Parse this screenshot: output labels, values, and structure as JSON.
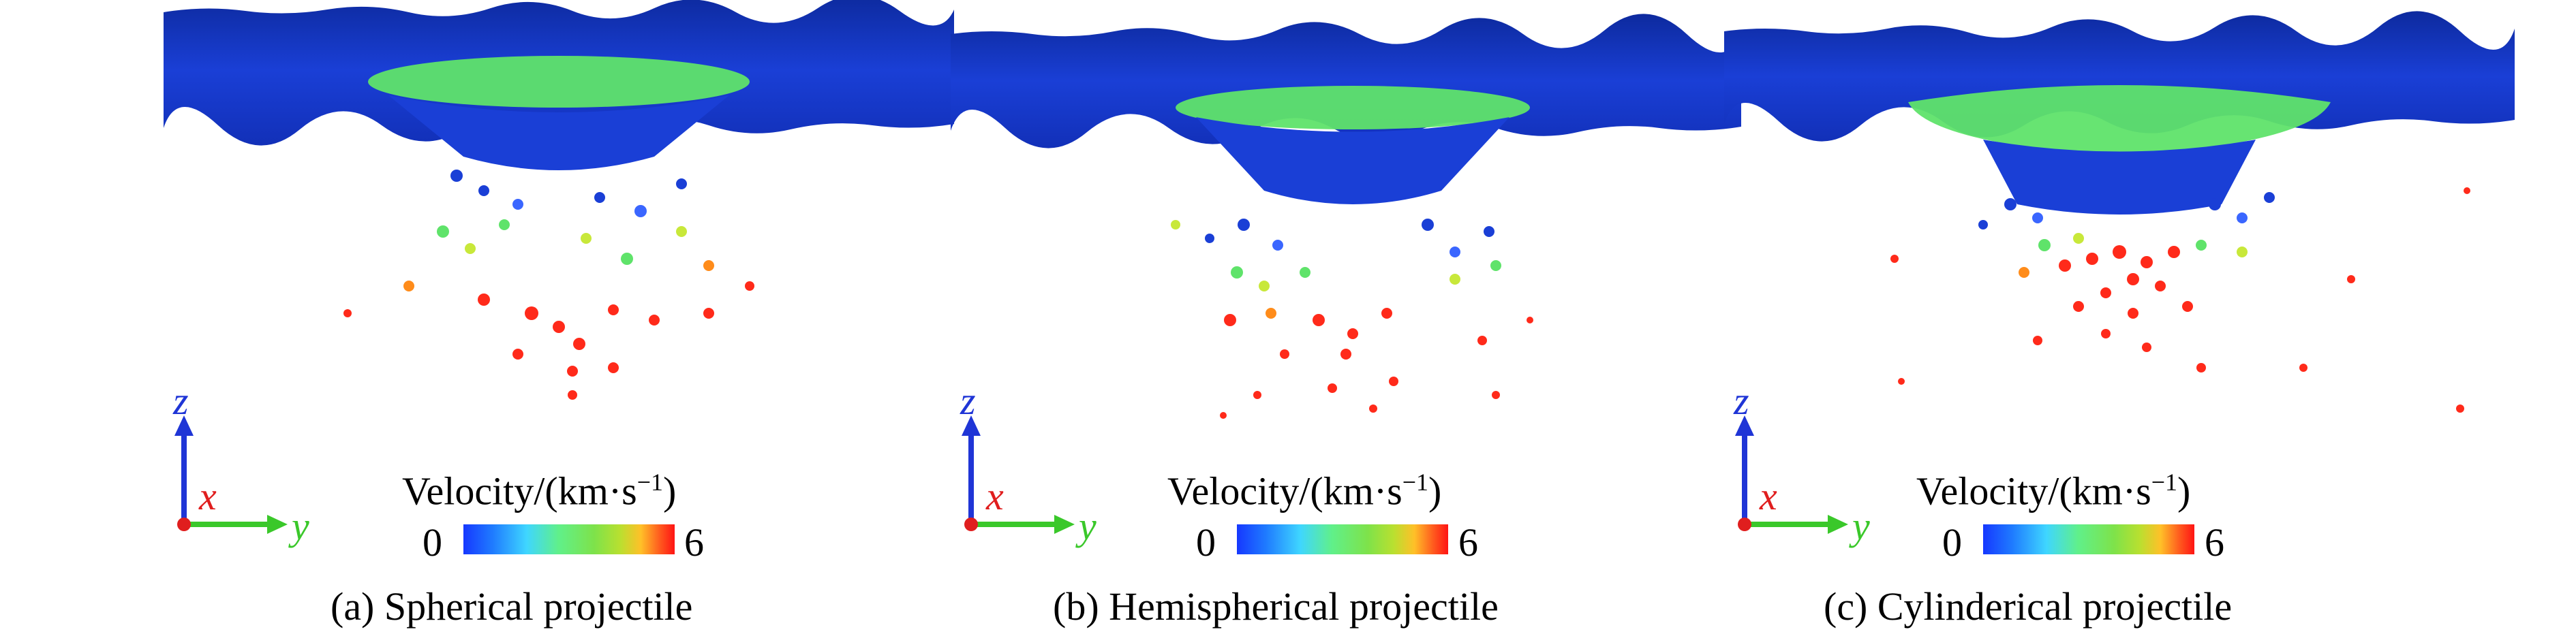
{
  "colors": {
    "target": "#1a3fd6",
    "target_dark": "#0d2a9e",
    "crater": "#5fe36a",
    "fast": "#ff2a1a",
    "mid": "#c8e83a",
    "z_axis": "#1f35d6",
    "x_axis": "#e01e1e",
    "y_axis": "#3ac82a"
  },
  "axes": {
    "z": "z",
    "x": "x",
    "y": "y"
  },
  "colorbar": {
    "title_main": "Velocity/(km·s",
    "title_sup": "−1",
    "title_end": ")",
    "min": "0",
    "max": "6"
  },
  "panels": [
    {
      "id": "a",
      "caption": "(a) Spherical projectile"
    },
    {
      "id": "b",
      "caption": "(b) Hemispherical projectile"
    },
    {
      "id": "c",
      "caption": "(c) Cylinderical projectile"
    }
  ]
}
